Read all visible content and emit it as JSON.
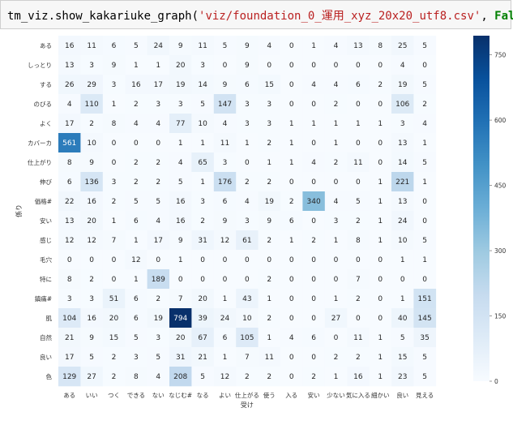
{
  "code": {
    "fn": "tm_viz.show_kakariuke_graph",
    "open": "(",
    "arg1": "'viz/foundation_0_運用_xyz_20x20_utf8.csv'",
    "comma": ", ",
    "arg2": "False",
    "close": ")"
  },
  "chart_data": {
    "type": "heatmap",
    "xlabel": "受け",
    "ylabel": "係り",
    "x_categories": [
      "ある",
      "いい",
      "つく",
      "できる",
      "ない",
      "なじむ#",
      "なる",
      "よい",
      "仕上がる",
      "使う",
      "入る",
      "安い",
      "少ない",
      "気に入る",
      "細かい",
      "良い",
      "見える"
    ],
    "y_categories": [
      "ある",
      "しっとり",
      "する",
      "のびる",
      "よく",
      "カバーカ",
      "仕上がり",
      "伸び",
      "価格#",
      "安い",
      "感じ",
      "毛穴",
      "特に",
      "鎮痛#",
      "肌",
      "自然",
      "良い",
      "色"
    ],
    "values": [
      [
        16,
        11,
        6,
        5,
        24,
        9,
        11,
        5,
        9,
        4,
        0,
        1,
        4,
        13,
        8,
        25,
        5
      ],
      [
        13,
        3,
        9,
        1,
        1,
        20,
        3,
        0,
        9,
        0,
        0,
        0,
        0,
        0,
        0,
        4,
        0
      ],
      [
        26,
        29,
        3,
        16,
        17,
        19,
        14,
        9,
        6,
        15,
        0,
        4,
        4,
        6,
        2,
        19,
        5
      ],
      [
        4,
        110,
        1,
        2,
        3,
        3,
        5,
        147,
        3,
        3,
        0,
        0,
        2,
        0,
        0,
        106,
        2
      ],
      [
        17,
        2,
        8,
        4,
        4,
        77,
        10,
        4,
        3,
        3,
        1,
        1,
        1,
        1,
        1,
        3,
        4
      ],
      [
        561,
        10,
        0,
        0,
        0,
        1,
        1,
        11,
        1,
        2,
        1,
        0,
        1,
        0,
        0,
        13,
        1
      ],
      [
        8,
        9,
        0,
        2,
        2,
        4,
        65,
        3,
        0,
        1,
        1,
        4,
        2,
        11,
        0,
        14,
        5
      ],
      [
        6,
        136,
        3,
        2,
        2,
        5,
        1,
        176,
        2,
        2,
        0,
        0,
        0,
        0,
        1,
        221,
        1
      ],
      [
        22,
        16,
        2,
        5,
        5,
        16,
        3,
        6,
        4,
        19,
        2,
        340,
        4,
        5,
        1,
        13,
        0
      ],
      [
        13,
        20,
        1,
        6,
        4,
        16,
        2,
        9,
        3,
        9,
        6,
        0,
        3,
        2,
        1,
        24,
        0
      ],
      [
        12,
        12,
        7,
        1,
        17,
        9,
        31,
        12,
        61,
        2,
        1,
        2,
        1,
        8,
        1,
        10,
        5
      ],
      [
        0,
        0,
        0,
        12,
        0,
        1,
        0,
        0,
        0,
        0,
        0,
        0,
        0,
        0,
        0,
        1,
        1
      ],
      [
        8,
        2,
        0,
        1,
        189,
        0,
        0,
        0,
        0,
        2,
        0,
        0,
        0,
        7,
        0,
        0,
        0
      ],
      [
        3,
        3,
        51,
        6,
        2,
        7,
        20,
        1,
        43,
        1,
        0,
        0,
        1,
        2,
        0,
        1,
        151
      ],
      [
        104,
        16,
        20,
        6,
        19,
        794,
        39,
        24,
        10,
        2,
        0,
        0,
        27,
        0,
        0,
        40,
        145
      ],
      [
        21,
        9,
        15,
        5,
        3,
        20,
        67,
        6,
        105,
        1,
        4,
        6,
        0,
        11,
        1,
        5,
        35
      ],
      [
        17,
        5,
        2,
        3,
        5,
        31,
        21,
        1,
        7,
        11,
        0,
        0,
        2,
        2,
        1,
        15,
        5
      ],
      [
        129,
        27,
        2,
        8,
        4,
        208,
        5,
        12,
        2,
        2,
        0,
        2,
        1,
        16,
        1,
        23,
        5
      ]
    ],
    "colormap": "Blues",
    "vmin": 0,
    "vmax": 794,
    "colorbar_ticks": [
      0,
      150,
      300,
      450,
      600,
      750
    ],
    "colors": {
      "low": "#f7fbff",
      "high": "#08306b",
      "text_dark": "#262626",
      "text_light": "#ffffff"
    }
  }
}
